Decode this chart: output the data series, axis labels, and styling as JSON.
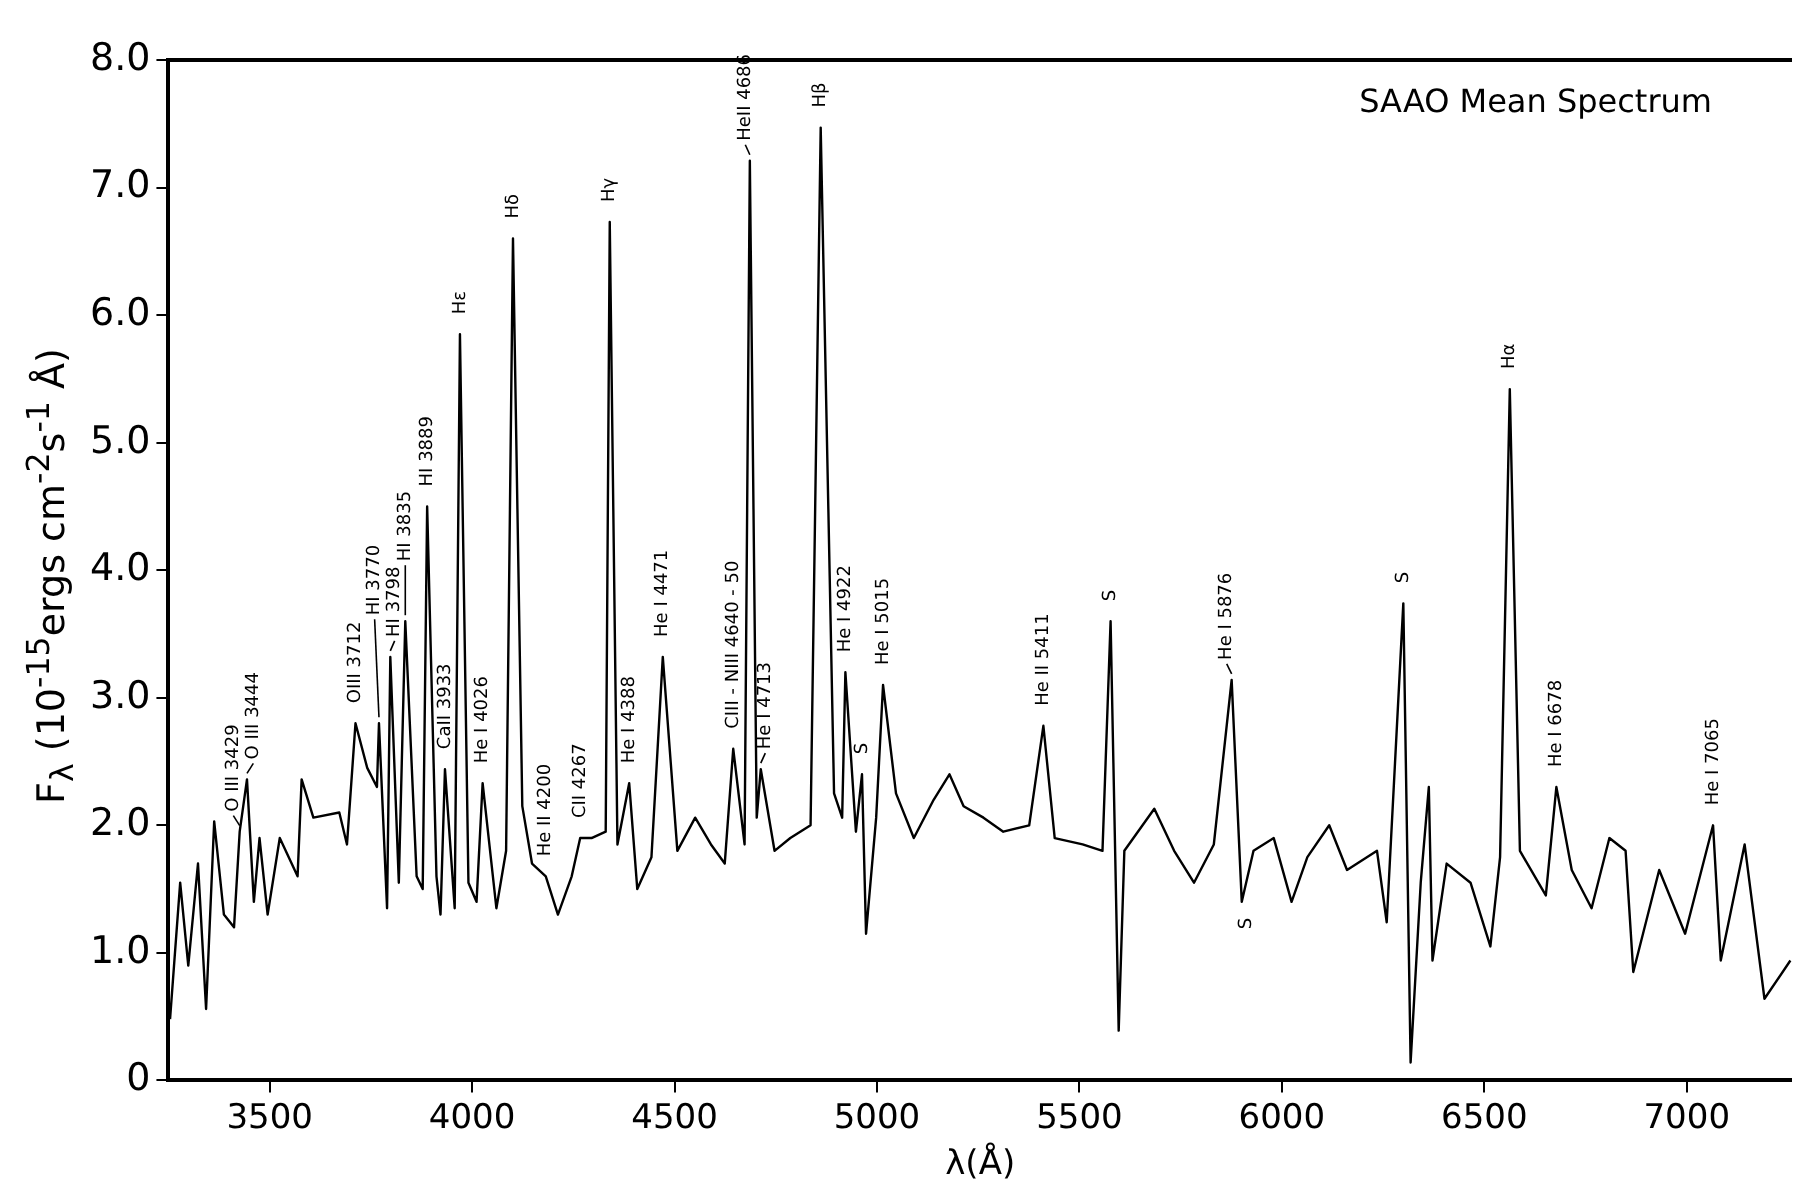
{
  "chart_data": {
    "type": "line",
    "xlabel": "λ(Å)",
    "ylabel": "F$_{λ}$ (10$^{-15}$ergs cm$^{-2}$s$^{-1}$ Å)",
    "series": [
      {
        "color": "#000000",
        "x": [
          3254,
          3279,
          3299,
          3323,
          3343,
          3363,
          3387,
          3412,
          3426,
          3444,
          3461,
          3475,
          3495,
          3525,
          3569,
          3579,
          3608,
          3672,
          3691,
          3712,
          3741,
          3765,
          3770,
          3790,
          3798,
          3819,
          3835,
          3863,
          3878,
          3889,
          3912,
          3922,
          3933,
          3957,
          3970,
          3991,
          4011,
          4026,
          4060,
          4084,
          4101,
          4124,
          4148,
          4182,
          4212,
          4246,
          4267,
          4295,
          4330,
          4340,
          4359,
          4388,
          4408,
          4443,
          4471,
          4507,
          4551,
          4590,
          4624,
          4645,
          4673,
          4686,
          4703,
          4713,
          4747,
          4786,
          4836,
          4861,
          4894,
          4914,
          4922,
          4948,
          4963,
          4973,
          4998,
          5015,
          5047,
          5091,
          5140,
          5179,
          5214,
          5263,
          5312,
          5376,
          5411,
          5439,
          5508,
          5557,
          5577,
          5597,
          5611,
          5685,
          5734,
          5783,
          5832,
          5876,
          5901,
          5930,
          5980,
          6024,
          6063,
          6117,
          6161,
          6235,
          6259,
          6300,
          6318,
          6343,
          6363,
          6372,
          6407,
          6466,
          6515,
          6539,
          6563,
          6588,
          6652,
          6678,
          6716,
          6765,
          6809,
          6849,
          6868,
          6932,
          6996,
          7065,
          7084,
          7143,
          7192,
          7256
        ],
        "values": [
          0.48,
          1.55,
          0.9,
          1.7,
          0.56,
          2.03,
          1.3,
          1.2,
          1.95,
          2.36,
          1.4,
          1.9,
          1.3,
          1.9,
          1.6,
          2.36,
          2.06,
          2.1,
          1.85,
          2.8,
          2.45,
          2.3,
          2.8,
          1.35,
          3.32,
          1.55,
          3.6,
          1.6,
          1.5,
          4.5,
          1.6,
          1.3,
          2.44,
          1.35,
          5.85,
          1.55,
          1.4,
          2.33,
          1.35,
          1.8,
          6.6,
          2.15,
          1.7,
          1.6,
          1.3,
          1.6,
          1.9,
          1.9,
          1.95,
          6.73,
          1.85,
          2.33,
          1.5,
          1.75,
          3.32,
          1.8,
          2.06,
          1.85,
          1.7,
          2.6,
          1.85,
          7.21,
          2.06,
          2.44,
          1.8,
          1.9,
          2.0,
          7.47,
          2.25,
          2.06,
          3.2,
          1.95,
          2.4,
          1.15,
          2.06,
          3.1,
          2.25,
          1.9,
          2.2,
          2.4,
          2.15,
          2.06,
          1.95,
          2.0,
          2.78,
          1.9,
          1.85,
          1.8,
          3.6,
          0.39,
          1.8,
          2.13,
          1.8,
          1.55,
          1.85,
          3.14,
          1.4,
          1.8,
          1.9,
          1.4,
          1.75,
          2.0,
          1.65,
          1.8,
          1.24,
          3.74,
          0.14,
          1.55,
          2.3,
          0.94,
          1.7,
          1.55,
          1.05,
          1.75,
          5.42,
          1.8,
          1.45,
          2.3,
          1.65,
          1.35,
          1.9,
          1.8,
          0.85,
          1.65,
          1.15,
          2.0,
          0.94,
          1.85,
          0.64,
          0.94
        ]
      }
    ],
    "xlim": [
      3250,
      7260
    ],
    "ylim": [
      0,
      8
    ],
    "xticks": [
      3500,
      4000,
      4500,
      5000,
      5500,
      6000,
      6500,
      7000
    ],
    "yticks": [
      0,
      {
        "value": 1,
        "label": "1.0"
      },
      {
        "value": 2,
        "label": "2.0"
      },
      {
        "value": 3,
        "label": "3.0"
      },
      {
        "value": 4,
        "label": "4.0"
      },
      {
        "value": 5,
        "label": "5.0"
      },
      {
        "value": 6,
        "label": "6.0"
      },
      {
        "value": 7,
        "label": "7.0"
      },
      {
        "value": 8,
        "label": "8.0"
      }
    ],
    "grid": false,
    "legend": false,
    "marker": "none",
    "line_style": "solid",
    "annotations": [
      "SAAO Mean Spectrum",
      {
        "text": "O III 3429",
        "x": 3426,
        "y": 1.95
      },
      {
        "text": "O III 3444",
        "x": 3444,
        "y": 2.36
      },
      {
        "text": "OIII 3712",
        "x": 3712,
        "y": 2.8
      },
      {
        "text": "HI 3770",
        "x": 3770,
        "y": 2.8
      },
      {
        "text": "HI 3798",
        "x": 3798,
        "y": 3.32
      },
      {
        "text": "HI 3835",
        "x": 3835,
        "y": 3.6
      },
      {
        "text": "HI 3889",
        "x": 3889,
        "y": 4.5
      },
      {
        "text": "CaII 3933",
        "x": 3933,
        "y": 2.44
      },
      {
        "text": "He I 4026",
        "x": 4026,
        "y": 2.33
      },
      {
        "text": "Hε",
        "x": 3970,
        "y": 5.85
      },
      {
        "text": "Hδ",
        "x": 4101,
        "y": 6.6
      },
      {
        "text": "He II 4200",
        "x": 4182,
        "y": 1.6
      },
      {
        "text": "CII 4267",
        "x": 4267,
        "y": 1.9
      },
      {
        "text": "Hγ",
        "x": 4340,
        "y": 6.73
      },
      {
        "text": "He I 4388",
        "x": 4388,
        "y": 2.33
      },
      {
        "text": "He I 4471",
        "x": 4471,
        "y": 3.32
      },
      {
        "text": "CIII - NIII 4640 - 50",
        "x": 4645,
        "y": 2.6
      },
      {
        "text": "HeII 4686",
        "x": 4686,
        "y": 7.21
      },
      {
        "text": "He I 4713",
        "x": 4713,
        "y": 2.44
      },
      {
        "text": "Hβ",
        "x": 4861,
        "y": 7.47
      },
      {
        "text": "He I 4922",
        "x": 4922,
        "y": 3.2
      },
      {
        "text": "S",
        "x": 4963,
        "y": 2.4
      },
      {
        "text": "He I 5015",
        "x": 5015,
        "y": 3.1
      },
      {
        "text": "He II 5411",
        "x": 5411,
        "y": 2.78
      },
      {
        "text": "S",
        "x": 5577,
        "y": 3.6
      },
      {
        "text": "He I 5876",
        "x": 5876,
        "y": 3.14
      },
      {
        "text": "S",
        "x": 5901,
        "y": 1.4
      },
      {
        "text": "S",
        "x": 6300,
        "y": 3.74
      },
      {
        "text": "Hα",
        "x": 6563,
        "y": 5.42
      },
      {
        "text": "He I 6678",
        "x": 6678,
        "y": 2.3
      },
      {
        "text": "He I 7065",
        "x": 7065,
        "y": 2.0
      }
    ]
  }
}
